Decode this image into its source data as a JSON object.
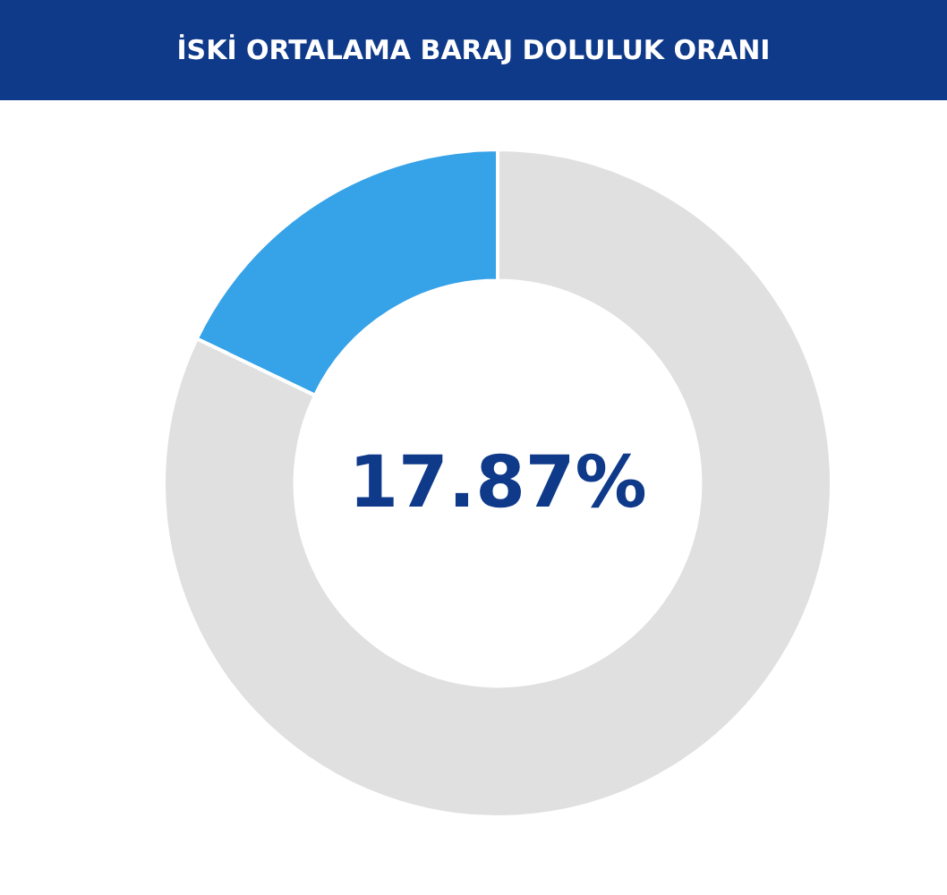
{
  "chart_data": {
    "type": "donut",
    "title": "İSKİ ORTALAMA BARAJ DOLULUK ORANI",
    "categories": [
      null,
      null
    ],
    "values": [
      17.87,
      82.13
    ],
    "colors": [
      "#36a2e8",
      "#e0e0e0"
    ],
    "value_labels": [
      "17.87%",
      null
    ]
  }
}
